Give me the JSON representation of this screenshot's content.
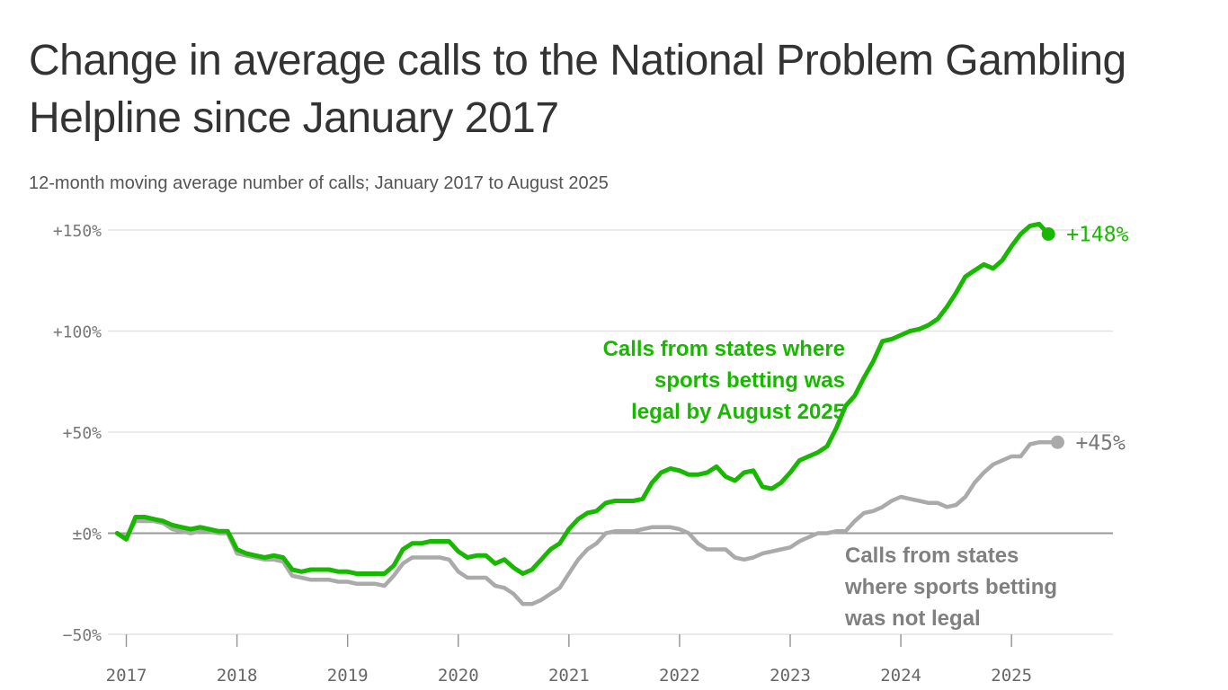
{
  "header": {
    "title": "Change in average calls to the National Problem Gambling Helpline since January 2017",
    "subtitle": "12-month moving average number of calls; January 2017 to August 2025"
  },
  "colors": {
    "legal": "#19b800",
    "not_legal": "#aaaaaa",
    "grid": "#e3e3e3",
    "zero_line": "#999999",
    "text": "#333333"
  },
  "chart_data": {
    "type": "line",
    "title": "Change in average calls to the National Problem Gambling Helpline since January 2017",
    "subtitle": "12-month moving average number of calls; January 2017 to August 2025",
    "x_start": "2016-12",
    "x_end": "2025-08",
    "xlim": [
      "2016-11",
      "2025-12"
    ],
    "x_ticks": [
      "2017",
      "2018",
      "2019",
      "2020",
      "2021",
      "2022",
      "2023",
      "2024",
      "2025"
    ],
    "ylim": [
      -50,
      150
    ],
    "y_ticks": [
      150,
      100,
      50,
      0,
      -50
    ],
    "y_tick_labels": [
      "+150%",
      "+100%",
      "+50%",
      "±0%",
      "−50%"
    ],
    "grid": true,
    "series": [
      {
        "key": "legal",
        "annotation": [
          "Calls from states where",
          "sports betting was",
          "legal by August 2025"
        ],
        "end_label": "+148%",
        "values": [
          0,
          -3,
          8,
          8,
          7,
          6,
          4,
          3,
          2,
          3,
          2,
          1,
          1,
          -8,
          -10,
          -11,
          -12,
          -11,
          -12,
          -18,
          -19,
          -18,
          -18,
          -18,
          -19,
          -19,
          -20,
          -20,
          -20,
          -20,
          -16,
          -8,
          -5,
          -5,
          -4,
          -4,
          -4,
          -9,
          -12,
          -11,
          -11,
          -15,
          -13,
          -17,
          -20,
          -18,
          -13,
          -8,
          -5,
          2,
          7,
          10,
          11,
          15,
          16,
          16,
          16,
          17,
          25,
          30,
          32,
          31,
          29,
          29,
          30,
          33,
          28,
          26,
          30,
          31,
          23,
          22,
          25,
          30,
          36,
          38,
          40,
          43,
          52,
          63,
          68,
          77,
          85,
          95,
          96,
          98,
          100,
          101,
          103,
          106,
          112,
          119,
          127,
          130,
          133,
          131,
          135,
          142,
          148,
          152,
          153,
          148
        ]
      },
      {
        "key": "not_legal",
        "annotation": [
          "Calls from states",
          "where sports betting",
          "was not legal"
        ],
        "end_label": "+45%",
        "values": [
          0,
          -2,
          6,
          6,
          6,
          5,
          2,
          1,
          0,
          1,
          1,
          0,
          0,
          -10,
          -11,
          -12,
          -13,
          -13,
          -14,
          -21,
          -22,
          -23,
          -23,
          -23,
          -24,
          -24,
          -25,
          -25,
          -25,
          -26,
          -21,
          -15,
          -12,
          -12,
          -12,
          -12,
          -13,
          -19,
          -22,
          -22,
          -22,
          -26,
          -27,
          -30,
          -35,
          -35,
          -33,
          -30,
          -27,
          -20,
          -13,
          -8,
          -5,
          0,
          1,
          1,
          1,
          2,
          3,
          3,
          3,
          2,
          0,
          -5,
          -8,
          -8,
          -8,
          -12,
          -13,
          -12,
          -10,
          -9,
          -8,
          -7,
          -4,
          -2,
          0,
          0,
          1,
          1,
          6,
          10,
          11,
          13,
          16,
          18,
          17,
          16,
          15,
          15,
          13,
          14,
          18,
          25,
          30,
          34,
          36,
          38,
          38,
          44,
          45,
          45,
          45
        ]
      }
    ]
  }
}
